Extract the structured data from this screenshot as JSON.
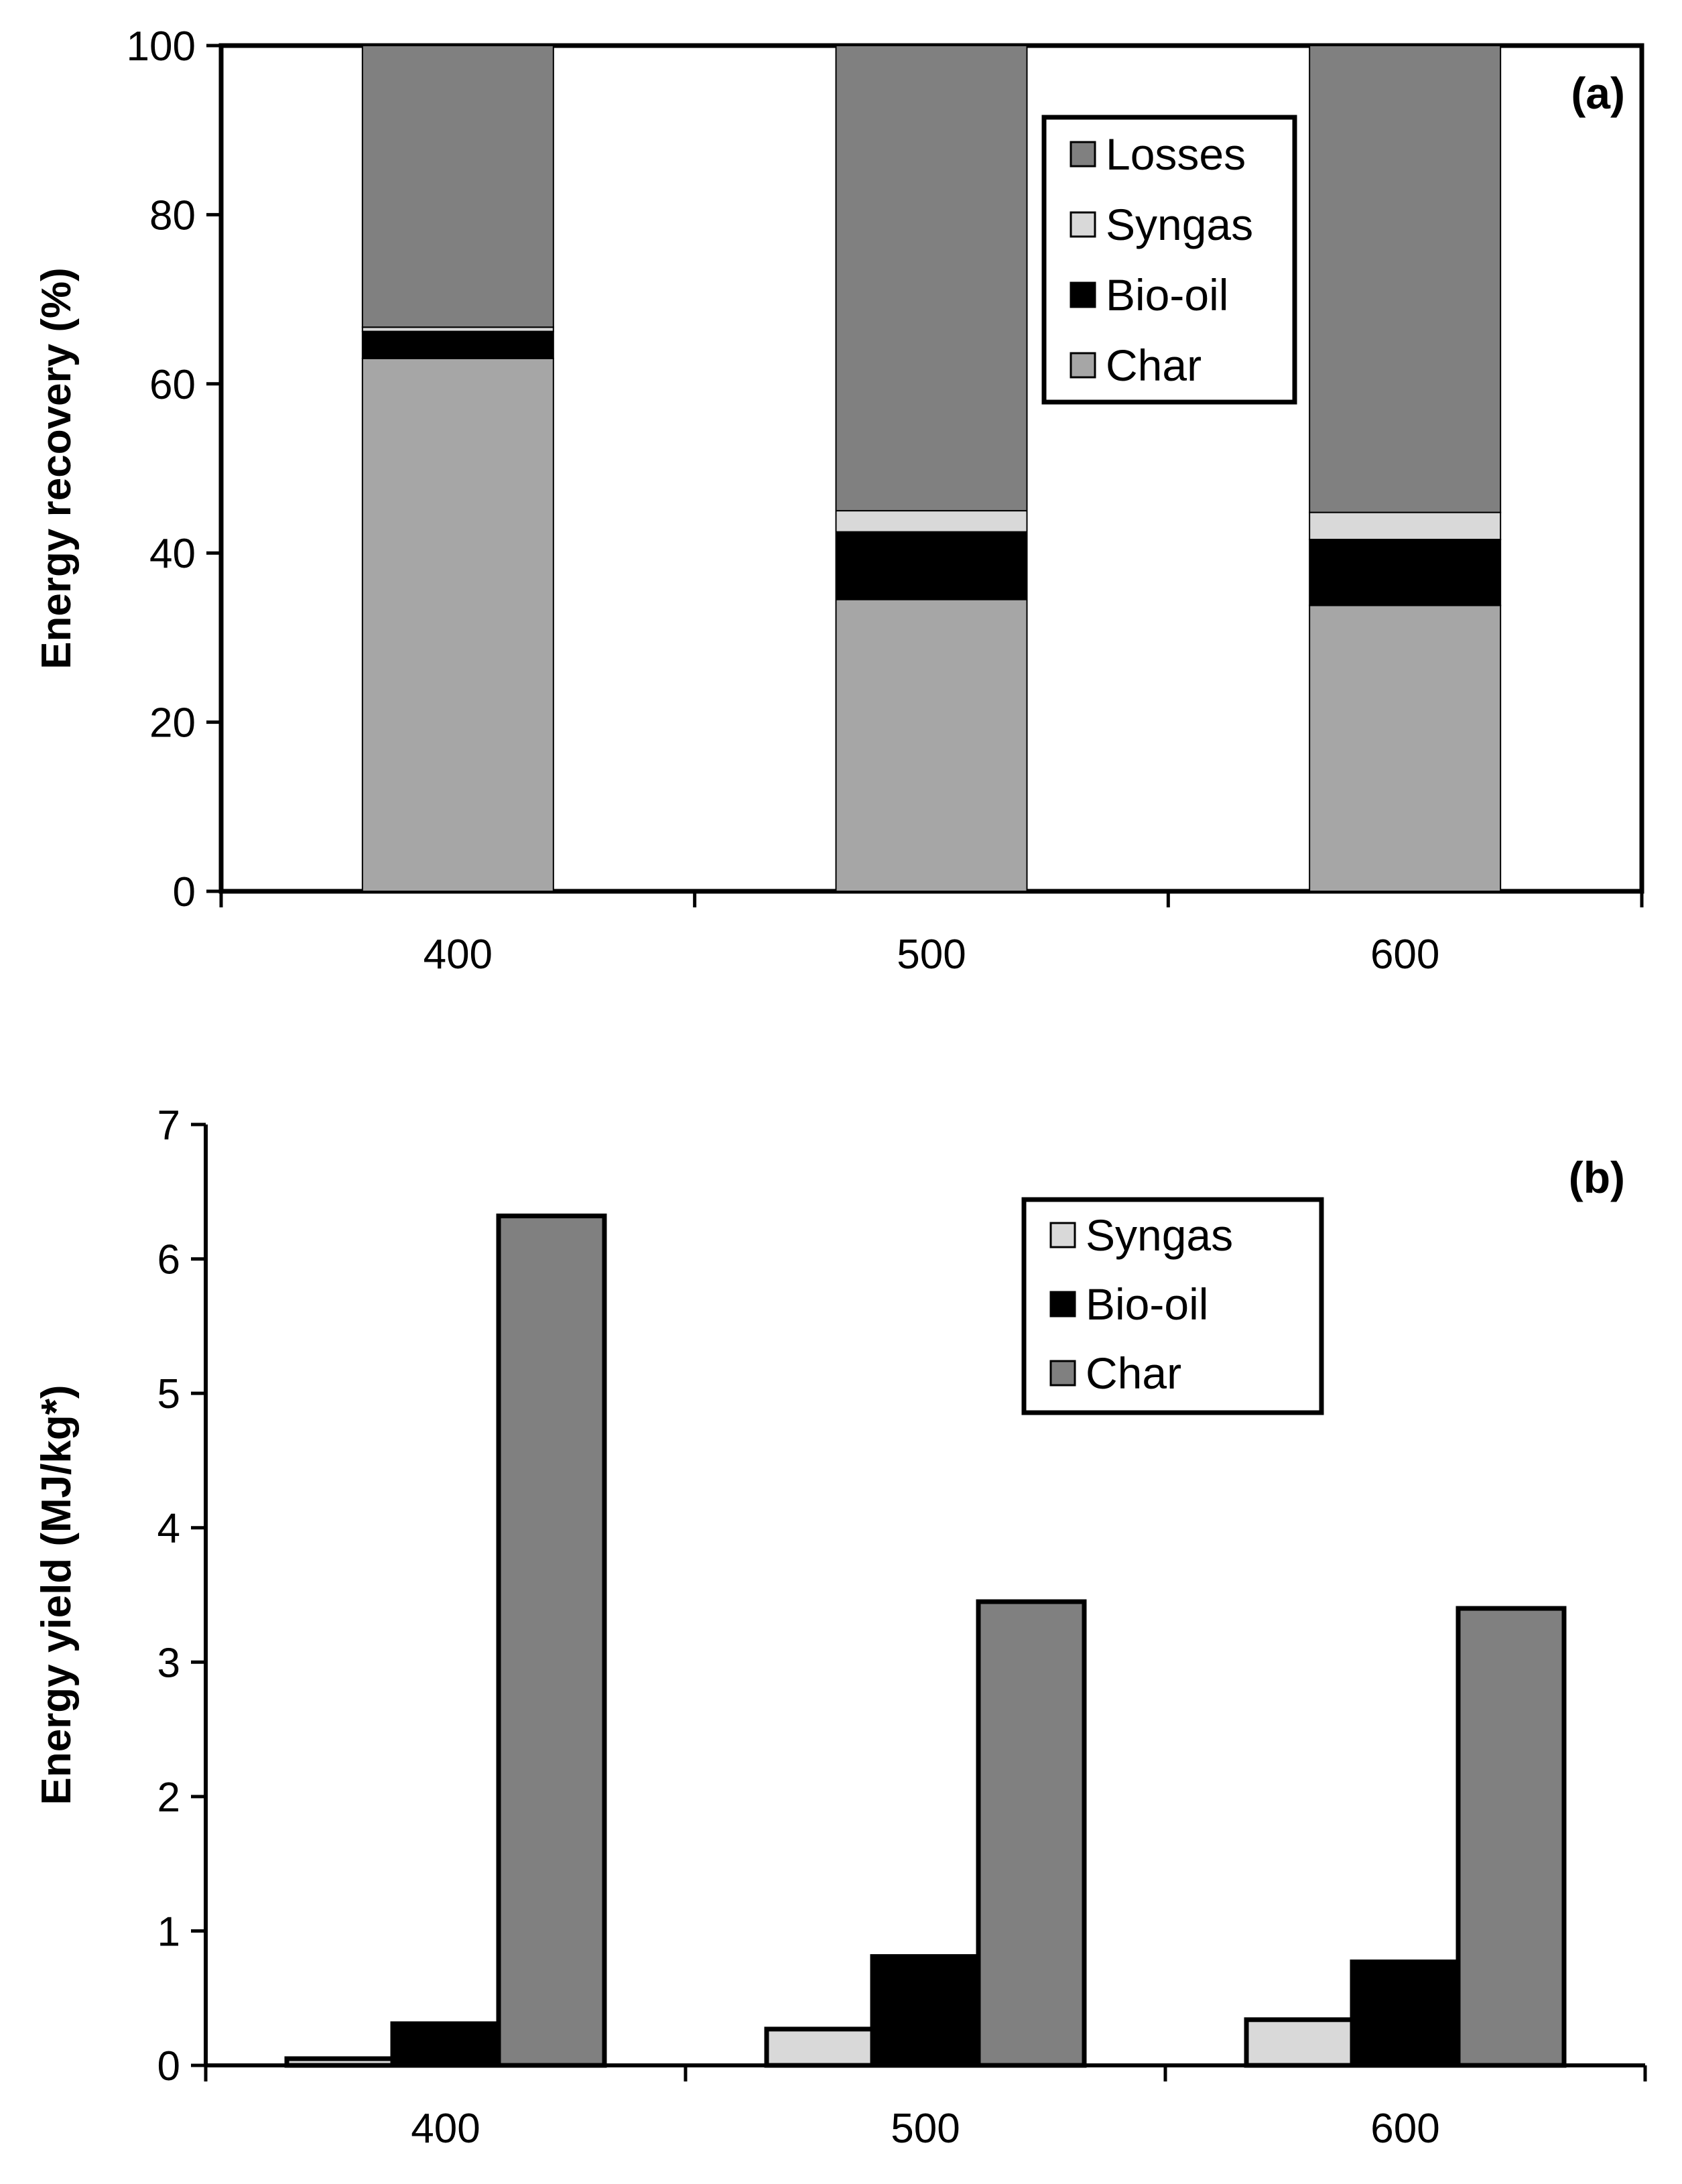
{
  "chart_data": [
    {
      "type": "bar",
      "stacked": true,
      "panel_label": "(a)",
      "categories": [
        "400",
        "500",
        "600"
      ],
      "series": [
        {
          "name": "Char",
          "color": "#a6a6a6",
          "values": [
            63.0,
            34.5,
            33.8
          ]
        },
        {
          "name": "Bio-oil",
          "color": "#000000",
          "values": [
            3.2,
            8.0,
            7.8
          ]
        },
        {
          "name": "Syngas",
          "color": "#d9d9d9",
          "values": [
            0.5,
            2.5,
            3.2
          ]
        },
        {
          "name": "Losses",
          "color": "#808080",
          "values": [
            33.3,
            55.0,
            55.2
          ]
        }
      ],
      "legend_entries": [
        "Losses",
        "Syngas",
        "Bio-oil",
        "Char"
      ],
      "xlabel": "",
      "ylabel": "Energy recovery (%)",
      "ylim": [
        0,
        100
      ],
      "yticks": [
        "0",
        "20",
        "40",
        "60",
        "80",
        "100"
      ],
      "legend_position": "top-right"
    },
    {
      "type": "bar",
      "stacked": false,
      "panel_label": "(b)",
      "categories": [
        "400",
        "500",
        "600"
      ],
      "series": [
        {
          "name": "Syngas",
          "color": "#d9d9d9",
          "values": [
            0.05,
            0.27,
            0.34
          ]
        },
        {
          "name": "Bio-oil",
          "color": "#000000",
          "values": [
            0.31,
            0.81,
            0.77
          ]
        },
        {
          "name": "Char",
          "color": "#808080",
          "values": [
            6.32,
            3.45,
            3.4
          ]
        }
      ],
      "legend_entries": [
        "Syngas",
        "Bio-oil",
        "Char"
      ],
      "xlabel": "",
      "ylabel": "Energy yield (MJ/kg*)",
      "ylim": [
        0,
        7
      ],
      "yticks": [
        "0",
        "1",
        "2",
        "3",
        "4",
        "5",
        "6",
        "7"
      ],
      "legend_position": "top-right"
    }
  ]
}
